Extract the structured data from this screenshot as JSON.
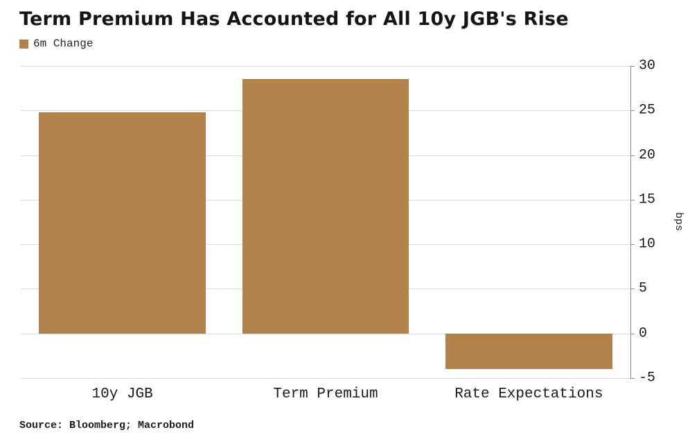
{
  "title": "Term Premium Has Accounted for All 10y JGB's Rise",
  "legend": {
    "label": "6m Change"
  },
  "source": "Source: Bloomberg; Macrobond",
  "colors": {
    "bar": "#b2824b",
    "grid": "#d9d9d9",
    "axis": "#888888"
  },
  "chart_data": {
    "type": "bar",
    "title": "Term Premium Has Accounted for All 10y JGB's Rise",
    "categories": [
      "10y JGB",
      "Term Premium",
      "Rate Expectations"
    ],
    "series": [
      {
        "name": "6m Change",
        "values": [
          24.8,
          28.5,
          -4.0
        ]
      }
    ],
    "xlabel": "",
    "ylabel": "bps",
    "ylim": [
      -5,
      30
    ],
    "yticks": [
      30,
      25,
      20,
      15,
      10,
      5,
      0,
      -5
    ],
    "grid": true,
    "legend_position": "top-left",
    "bar_color": "#b2824b"
  }
}
